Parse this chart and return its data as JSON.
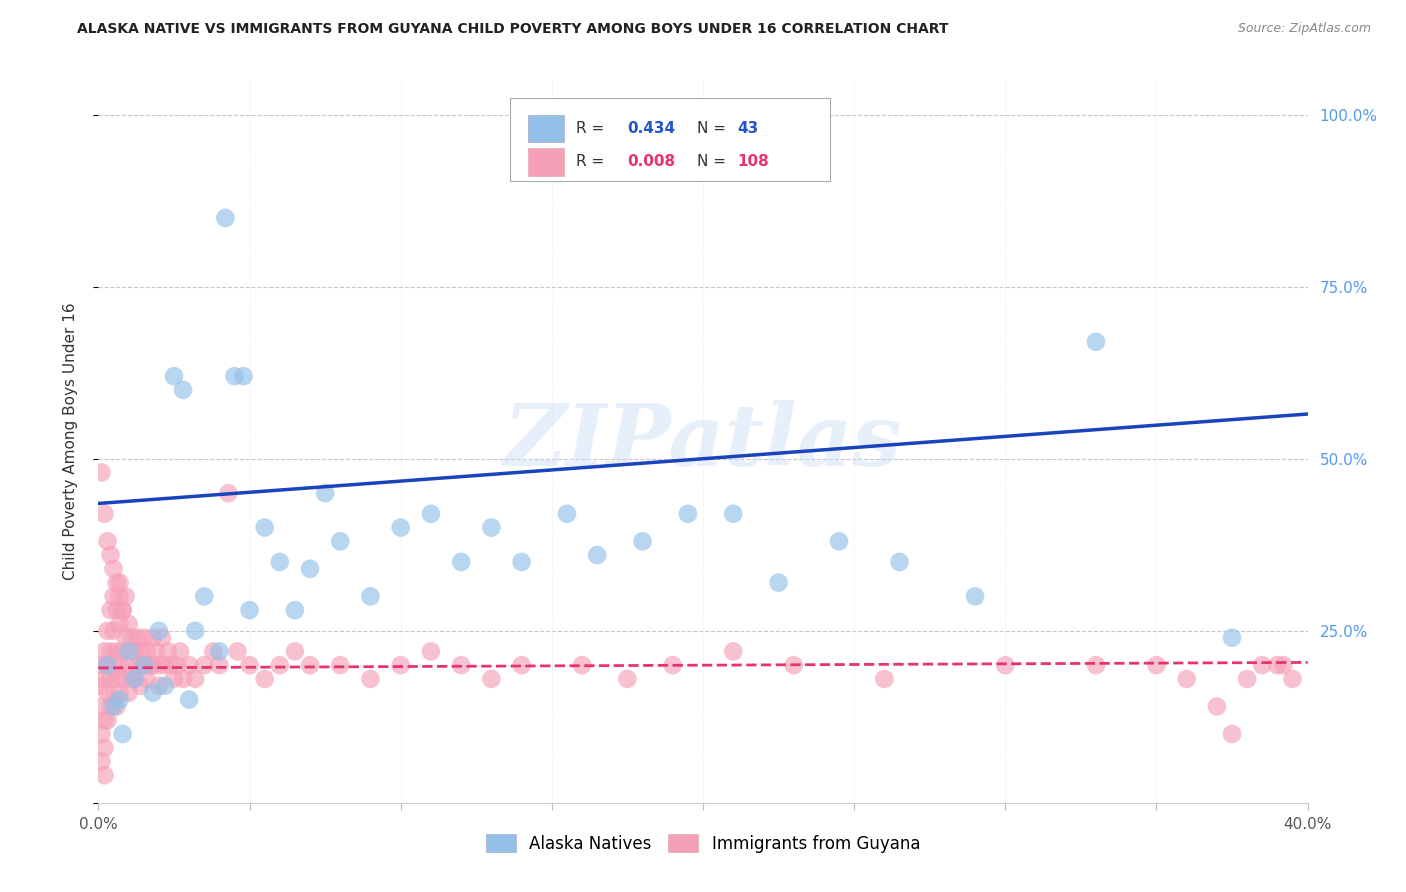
{
  "title": "ALASKA NATIVE VS IMMIGRANTS FROM GUYANA CHILD POVERTY AMONG BOYS UNDER 16 CORRELATION CHART",
  "source": "Source: ZipAtlas.com",
  "ylabel": "Child Poverty Among Boys Under 16",
  "xlim": [
    0.0,
    0.4
  ],
  "ylim": [
    0.0,
    1.05
  ],
  "legend_labels": [
    "Alaska Natives",
    "Immigrants from Guyana"
  ],
  "R_alaska": 0.434,
  "N_alaska": 43,
  "R_guyana": 0.008,
  "N_guyana": 108,
  "color_alaska": "#92c0e8",
  "color_guyana": "#f5a0b8",
  "line_color_alaska": "#1a44bb",
  "line_color_guyana": "#e8336e",
  "watermark": "ZIPatlas",
  "background_color": "#ffffff",
  "grid_color": "#c8c8c8",
  "title_color": "#222222",
  "source_color": "#888888",
  "axis_label_color": "#333333",
  "tick_color_y": "#5599ee",
  "alaska_line_y0": 0.435,
  "alaska_line_y1": 0.565,
  "guyana_line_y0": 0.196,
  "guyana_line_y1": 0.204,
  "alaska_x": [
    0.003,
    0.005,
    0.007,
    0.008,
    0.01,
    0.012,
    0.015,
    0.018,
    0.02,
    0.022,
    0.025,
    0.028,
    0.03,
    0.032,
    0.035,
    0.04,
    0.042,
    0.045,
    0.048,
    0.05,
    0.055,
    0.06,
    0.065,
    0.07,
    0.075,
    0.08,
    0.09,
    0.1,
    0.11,
    0.12,
    0.13,
    0.14,
    0.155,
    0.165,
    0.18,
    0.195,
    0.21,
    0.225,
    0.245,
    0.265,
    0.29,
    0.33,
    0.375
  ],
  "alaska_y": [
    0.2,
    0.14,
    0.15,
    0.1,
    0.22,
    0.18,
    0.2,
    0.16,
    0.25,
    0.17,
    0.62,
    0.6,
    0.15,
    0.25,
    0.3,
    0.22,
    0.85,
    0.62,
    0.62,
    0.28,
    0.4,
    0.35,
    0.28,
    0.34,
    0.45,
    0.38,
    0.3,
    0.4,
    0.42,
    0.35,
    0.4,
    0.35,
    0.42,
    0.36,
    0.38,
    0.42,
    0.42,
    0.32,
    0.38,
    0.35,
    0.3,
    0.67,
    0.24
  ],
  "guyana_x": [
    0.001,
    0.001,
    0.001,
    0.001,
    0.001,
    0.002,
    0.002,
    0.002,
    0.002,
    0.002,
    0.003,
    0.003,
    0.003,
    0.003,
    0.004,
    0.004,
    0.004,
    0.004,
    0.005,
    0.005,
    0.005,
    0.005,
    0.006,
    0.006,
    0.006,
    0.006,
    0.007,
    0.007,
    0.007,
    0.007,
    0.008,
    0.008,
    0.008,
    0.009,
    0.009,
    0.01,
    0.01,
    0.01,
    0.011,
    0.011,
    0.012,
    0.012,
    0.013,
    0.013,
    0.014,
    0.014,
    0.015,
    0.015,
    0.016,
    0.016,
    0.017,
    0.018,
    0.018,
    0.019,
    0.02,
    0.02,
    0.021,
    0.022,
    0.023,
    0.024,
    0.025,
    0.026,
    0.027,
    0.028,
    0.03,
    0.032,
    0.035,
    0.038,
    0.04,
    0.043,
    0.046,
    0.05,
    0.055,
    0.06,
    0.065,
    0.07,
    0.08,
    0.09,
    0.1,
    0.11,
    0.12,
    0.13,
    0.14,
    0.16,
    0.175,
    0.19,
    0.21,
    0.23,
    0.26,
    0.3,
    0.33,
    0.35,
    0.36,
    0.37,
    0.375,
    0.38,
    0.385,
    0.39,
    0.392,
    0.395,
    0.001,
    0.002,
    0.003,
    0.004,
    0.005,
    0.006,
    0.007,
    0.008
  ],
  "guyana_y": [
    0.2,
    0.17,
    0.14,
    0.1,
    0.06,
    0.22,
    0.18,
    0.12,
    0.08,
    0.04,
    0.25,
    0.2,
    0.16,
    0.12,
    0.28,
    0.22,
    0.18,
    0.14,
    0.3,
    0.25,
    0.2,
    0.15,
    0.28,
    0.22,
    0.18,
    0.14,
    0.32,
    0.26,
    0.2,
    0.16,
    0.28,
    0.22,
    0.18,
    0.3,
    0.24,
    0.26,
    0.2,
    0.16,
    0.24,
    0.18,
    0.22,
    0.18,
    0.24,
    0.2,
    0.22,
    0.17,
    0.24,
    0.2,
    0.22,
    0.18,
    0.2,
    0.24,
    0.2,
    0.22,
    0.2,
    0.17,
    0.24,
    0.2,
    0.22,
    0.2,
    0.18,
    0.2,
    0.22,
    0.18,
    0.2,
    0.18,
    0.2,
    0.22,
    0.2,
    0.45,
    0.22,
    0.2,
    0.18,
    0.2,
    0.22,
    0.2,
    0.2,
    0.18,
    0.2,
    0.22,
    0.2,
    0.18,
    0.2,
    0.2,
    0.18,
    0.2,
    0.22,
    0.2,
    0.18,
    0.2,
    0.2,
    0.2,
    0.18,
    0.14,
    0.1,
    0.18,
    0.2,
    0.2,
    0.2,
    0.18,
    0.48,
    0.42,
    0.38,
    0.36,
    0.34,
    0.32,
    0.3,
    0.28
  ]
}
